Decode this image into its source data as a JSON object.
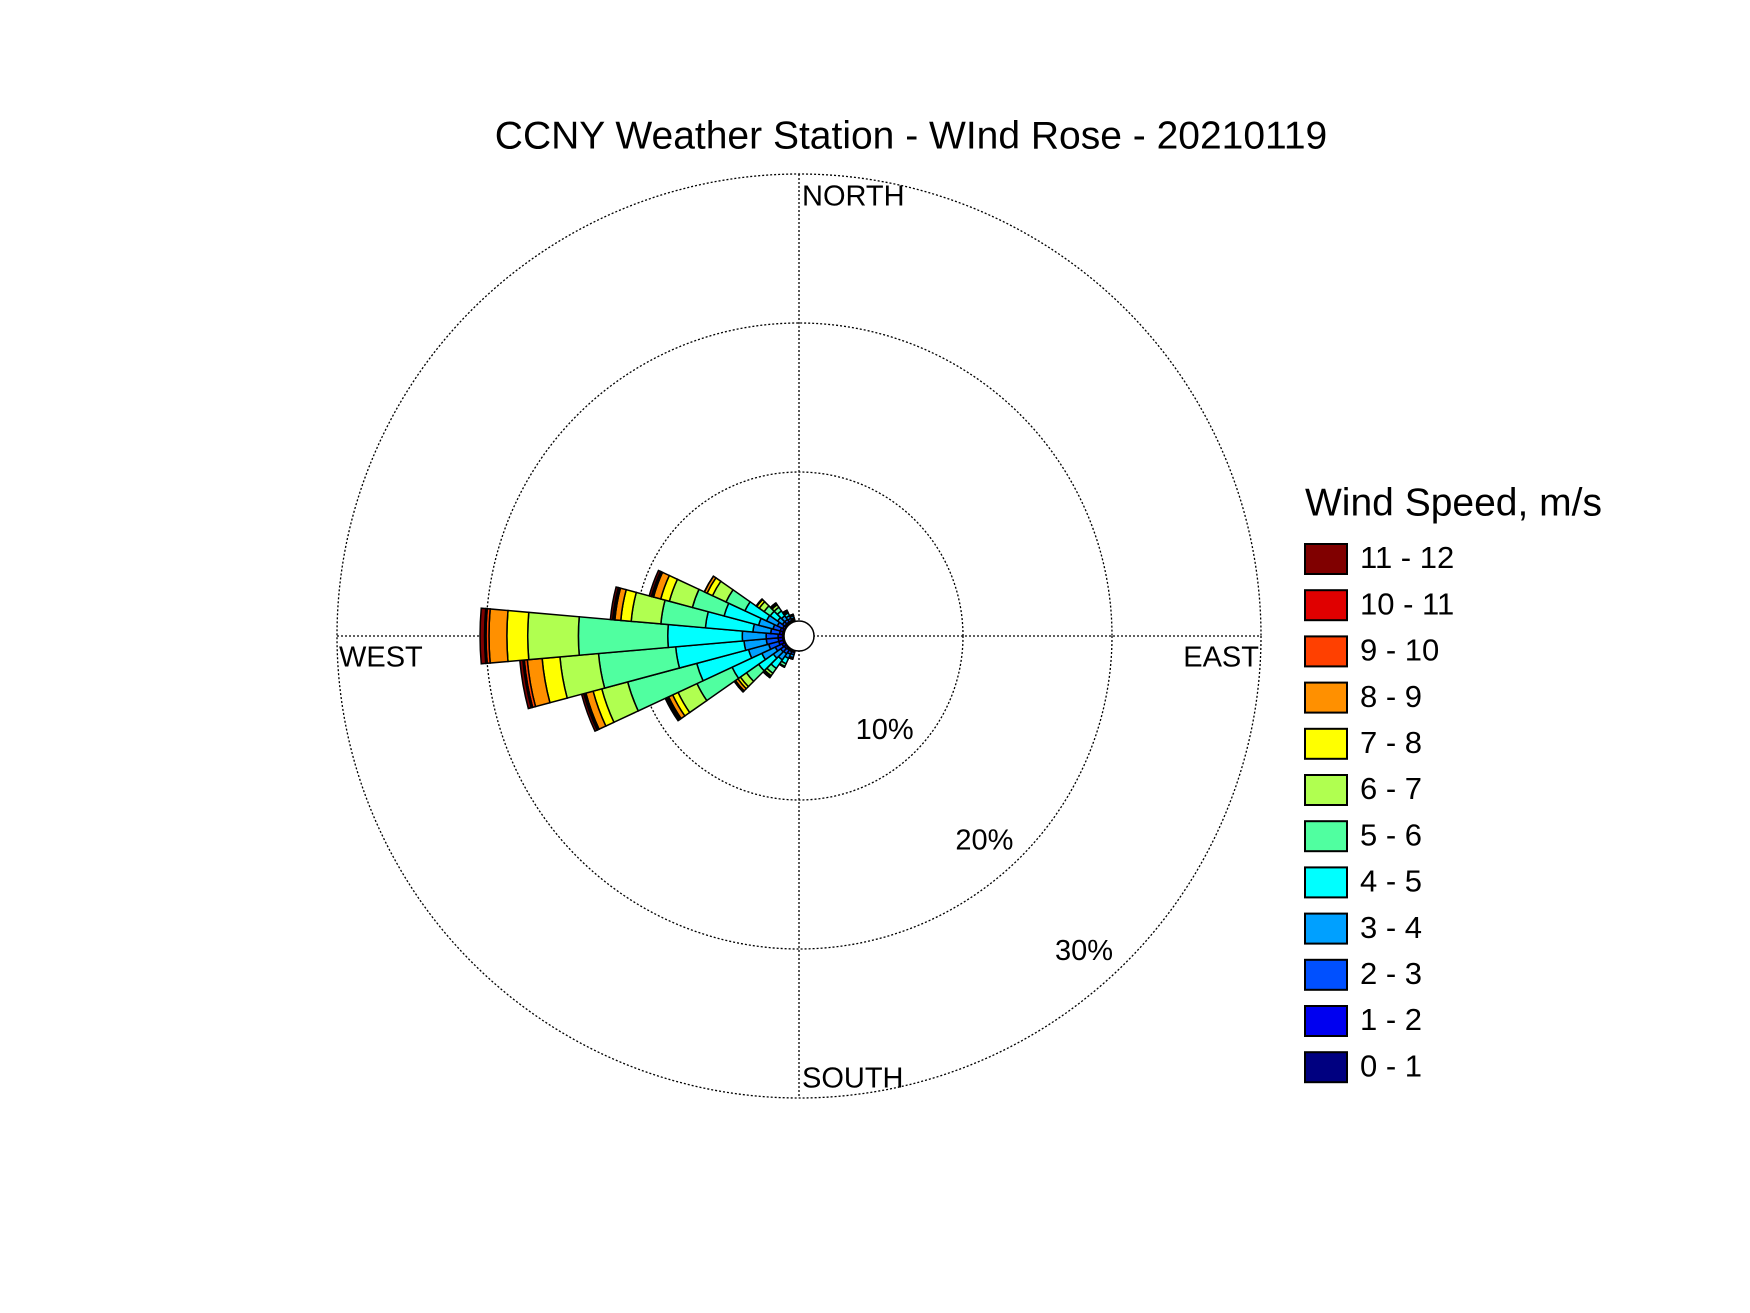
{
  "chart_data": {
    "type": "windrose",
    "title": "CCNY Weather Station - WInd Rose - 20210119",
    "legend_title": "Wind Speed, m/s",
    "directions": {
      "north": "NORTH",
      "south": "SOUTH",
      "east": "EAST",
      "west": "WEST"
    },
    "x": [
      200,
      210,
      220,
      230,
      240,
      250,
      260,
      270,
      280,
      290,
      300,
      310,
      320,
      330,
      340
    ],
    "bin_width": 10,
    "rlim": [
      0,
      30
    ],
    "rticks": [
      {
        "value": 10,
        "label": "10%"
      },
      {
        "value": 20,
        "label": "20%"
      },
      {
        "value": 30,
        "label": "30%"
      }
    ],
    "grid": true,
    "series": [
      {
        "name": "0 - 1",
        "color": "#000080",
        "values": [
          0.05,
          0.05,
          0.05,
          0.05,
          0.05,
          0.1,
          0.1,
          0.1,
          0.1,
          0.1,
          0.05,
          0.05,
          0.05,
          0.05,
          0.05
        ]
      },
      {
        "name": "1 - 2",
        "color": "#0000f0",
        "values": [
          0.1,
          0.1,
          0.1,
          0.15,
          0.2,
          0.3,
          0.3,
          0.3,
          0.2,
          0.2,
          0.15,
          0.1,
          0.1,
          0.1,
          0.1
        ]
      },
      {
        "name": "2 - 3",
        "color": "#0050ff",
        "values": [
          0.15,
          0.2,
          0.3,
          0.3,
          0.5,
          0.7,
          0.8,
          0.8,
          0.6,
          0.5,
          0.4,
          0.2,
          0.2,
          0.15,
          0.1
        ]
      },
      {
        "name": "3 - 4",
        "color": "#00a0ff",
        "values": [
          0.2,
          0.3,
          0.5,
          0.6,
          1.0,
          1.4,
          1.5,
          1.6,
          1.2,
          1.0,
          0.8,
          0.4,
          0.3,
          0.2,
          0.15
        ]
      },
      {
        "name": "4 - 5",
        "color": "#00ffff",
        "values": [
          0.1,
          0.4,
          0.7,
          1.2,
          2.2,
          3.6,
          4.6,
          5.0,
          3.2,
          2.4,
          1.6,
          0.6,
          0.4,
          0.2,
          0.1
        ]
      },
      {
        "name": "5 - 6",
        "color": "#50ffa0",
        "values": [
          0,
          0.2,
          0.4,
          1.0,
          2.6,
          4.8,
          5.2,
          6.0,
          3.0,
          2.2,
          1.4,
          0.5,
          0.3,
          0.1,
          0
        ]
      },
      {
        "name": "6 - 7",
        "color": "#b0ff50",
        "values": [
          0,
          0.05,
          0.2,
          0.5,
          1.4,
          1.8,
          2.6,
          3.4,
          2.0,
          1.6,
          1.0,
          0.4,
          0.2,
          0.1,
          0
        ]
      },
      {
        "name": "7 - 8",
        "color": "#ffff00",
        "values": [
          0,
          0,
          0.1,
          0.2,
          0.4,
          0.6,
          1.2,
          1.4,
          0.7,
          0.6,
          0.4,
          0.2,
          0.1,
          0,
          0
        ]
      },
      {
        "name": "8 - 9",
        "color": "#ff9000",
        "values": [
          0,
          0,
          0.05,
          0.2,
          0.3,
          0.5,
          1.0,
          1.2,
          0.4,
          0.5,
          0.2,
          0.05,
          0.05,
          0,
          0
        ]
      },
      {
        "name": "9 - 10",
        "color": "#ff4000",
        "values": [
          0,
          0,
          0,
          0.1,
          0.1,
          0.1,
          0.2,
          0.2,
          0.1,
          0.1,
          0,
          0,
          0,
          0,
          0
        ]
      },
      {
        "name": "10 - 11",
        "color": "#e00000",
        "values": [
          0,
          0,
          0,
          0,
          0.05,
          0.05,
          0.1,
          0.1,
          0.05,
          0.05,
          0,
          0,
          0,
          0,
          0
        ]
      },
      {
        "name": "11 - 12",
        "color": "#800000",
        "values": [
          0,
          0,
          0,
          0,
          0.1,
          0.15,
          0.2,
          0.3,
          0.15,
          0.15,
          0,
          0,
          0,
          0,
          0
        ]
      }
    ]
  }
}
